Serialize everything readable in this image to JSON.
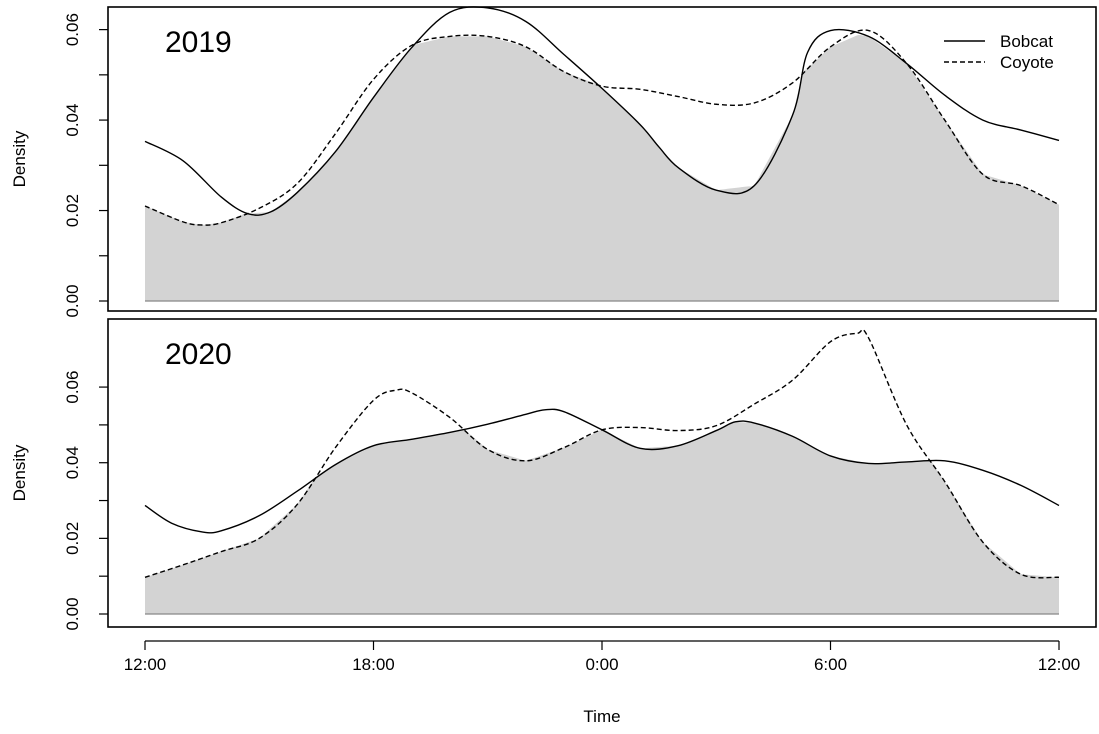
{
  "chart_data": [
    {
      "type": "line",
      "title": "",
      "panel_label": "2019",
      "xlabel": "",
      "ylabel": "Density",
      "xlim": [
        0,
        24
      ],
      "ylim": [
        0,
        0.065
      ],
      "x_ticks": [
        0,
        6,
        12,
        18,
        24
      ],
      "x_tick_labels": [
        "12:00",
        "18:00",
        "0:00",
        "6:00",
        "12:00"
      ],
      "y_ticks": [
        0,
        0.02,
        0.04,
        0.06
      ],
      "y_tick_labels": [
        "0.00",
        "0.02",
        "0.04",
        "0.06"
      ],
      "legend": {
        "position": "top-right",
        "entries": [
          {
            "name": "Bobcat",
            "linestyle": "solid"
          },
          {
            "name": "Coyote",
            "linestyle": "dashed"
          }
        ]
      },
      "overlap_fill_color": "#d3d3d3",
      "series": [
        {
          "name": "Bobcat",
          "linestyle": "solid",
          "x": [
            0,
            1,
            2,
            2.7,
            3.3,
            4,
            5,
            6,
            7,
            8,
            9,
            10,
            11,
            12,
            13,
            13.5,
            14,
            15,
            16,
            17,
            17.4,
            18,
            19,
            20,
            21,
            22,
            23,
            24
          ],
          "y": [
            0.0353,
            0.031,
            0.023,
            0.0193,
            0.0197,
            0.024,
            0.033,
            0.045,
            0.056,
            0.0638,
            0.0648,
            0.0618,
            0.0545,
            0.047,
            0.039,
            0.034,
            0.0295,
            0.0245,
            0.0255,
            0.041,
            0.055,
            0.0598,
            0.0585,
            0.0525,
            0.0455,
            0.04,
            0.0378,
            0.0355
          ]
        },
        {
          "name": "Coyote",
          "linestyle": "dashed",
          "x": [
            0,
            1,
            1.5,
            2,
            3,
            4,
            5,
            6,
            7,
            8,
            9,
            10,
            11,
            12,
            13,
            14,
            15,
            16,
            17,
            18,
            19,
            20,
            21,
            22,
            23,
            24
          ],
          "y": [
            0.021,
            0.0175,
            0.0168,
            0.0173,
            0.0205,
            0.026,
            0.037,
            0.049,
            0.0565,
            0.0585,
            0.0585,
            0.0562,
            0.0507,
            0.0475,
            0.0468,
            0.0452,
            0.0435,
            0.0438,
            0.0482,
            0.0562,
            0.0598,
            0.0525,
            0.04,
            0.028,
            0.0255,
            0.0213
          ]
        }
      ]
    },
    {
      "type": "line",
      "title": "",
      "panel_label": "2020",
      "xlabel": "Time",
      "ylabel": "Density",
      "xlim": [
        0,
        24
      ],
      "ylim": [
        0,
        0.078
      ],
      "x_ticks": [
        0,
        6,
        12,
        18,
        24
      ],
      "x_tick_labels": [
        "12:00",
        "18:00",
        "0:00",
        "6:00",
        "12:00"
      ],
      "y_ticks": [
        0,
        0.02,
        0.04,
        0.06
      ],
      "y_tick_labels": [
        "0.00",
        "0.02",
        "0.04",
        "0.06"
      ],
      "overlap_fill_color": "#d3d3d3",
      "series": [
        {
          "name": "Bobcat",
          "linestyle": "solid",
          "x": [
            0,
            0.7,
            1.5,
            2,
            3,
            4,
            5,
            6,
            7,
            8,
            9,
            10,
            10.5,
            11,
            12,
            13,
            14,
            15,
            15.5,
            16,
            17,
            18,
            19,
            20,
            21,
            22,
            23,
            24
          ],
          "y": [
            0.0287,
            0.024,
            0.0217,
            0.022,
            0.026,
            0.0325,
            0.0395,
            0.0445,
            0.0462,
            0.048,
            0.0502,
            0.0528,
            0.054,
            0.0535,
            0.0487,
            0.0438,
            0.0445,
            0.0485,
            0.0508,
            0.0505,
            0.047,
            0.0418,
            0.0398,
            0.0402,
            0.0405,
            0.038,
            0.034,
            0.0287
          ]
        },
        {
          "name": "Coyote",
          "linestyle": "dashed",
          "x": [
            0,
            1,
            2,
            3,
            4,
            5,
            6,
            6.6,
            7,
            8,
            9,
            10,
            11,
            12,
            13,
            14,
            15,
            16,
            17,
            18,
            18.7,
            19,
            20,
            21,
            22,
            23,
            24
          ],
          "y": [
            0.0097,
            0.013,
            0.0165,
            0.02,
            0.029,
            0.044,
            0.0565,
            0.0592,
            0.0585,
            0.052,
            0.0435,
            0.0405,
            0.044,
            0.0487,
            0.0493,
            0.0485,
            0.0498,
            0.0555,
            0.0618,
            0.072,
            0.0742,
            0.073,
            0.05,
            0.035,
            0.019,
            0.0105,
            0.0097
          ]
        }
      ]
    }
  ]
}
